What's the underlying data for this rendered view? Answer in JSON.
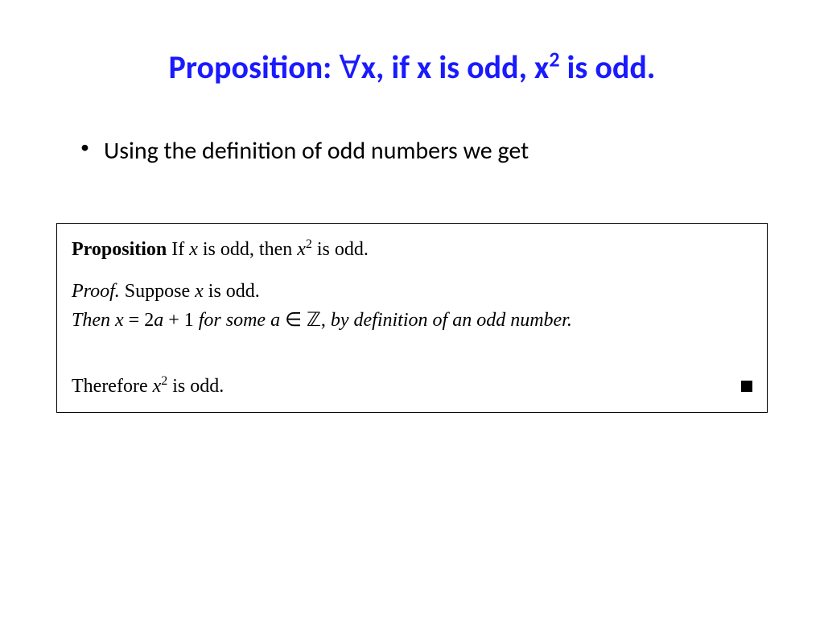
{
  "title_color": "#1a1aff",
  "title_fontsize": 40,
  "body_fontsize": 30,
  "proof_fontsize": 24,
  "background_color": "#ffffff",
  "box_border_color": "#000000",
  "title": {
    "t1": "Proposition: ",
    "forall": "∀",
    "t2": "x,",
    "t3": " if x is odd, x",
    "exp": "2",
    "t4": " is odd."
  },
  "bullet": {
    "dot": "•",
    "text": "Using the definition of odd numbers we get"
  },
  "proof": {
    "prop_label": "Proposition",
    "prop_gap": "   ",
    "prop_if": "If ",
    "prop_x1": "x",
    "prop_mid": " is odd, then ",
    "prop_x2": "x",
    "prop_exp": "2",
    "prop_end": " is odd.",
    "proof_label": "Proof.",
    "suppose_a": "  Suppose ",
    "suppose_x": "x",
    "suppose_b": " is odd.",
    "then_a": "Then  ",
    "then_eq_x": "x",
    "then_eq_mid": " = 2",
    "then_eq_a": "a",
    "then_eq_plus": " + 1",
    "then_for": "  for some  ",
    "then_a_var": "a",
    "then_in": " ∈ ",
    "then_z": "ℤ",
    "then_comma": ",",
    "then_by": "  by definition of an odd number.",
    "therefore_a": "Therefore ",
    "therefore_x": "x",
    "therefore_exp": "2",
    "therefore_b": " is odd."
  }
}
